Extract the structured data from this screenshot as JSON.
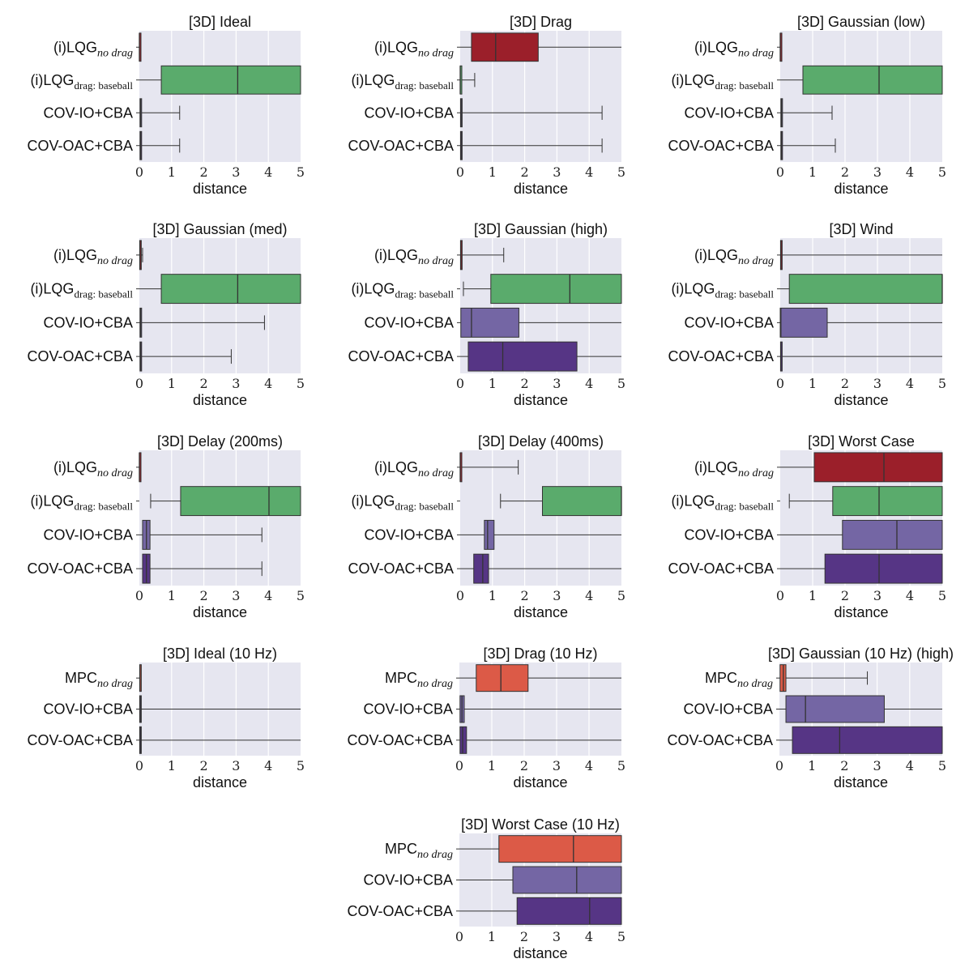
{
  "colors": {
    "lqg_nodrag": "#9b1f2a",
    "lqg_baseball": "#5aab6c",
    "cov_io": "#7466a4",
    "cov_oac": "#563585",
    "mpc_nodrag": "#dc5a47"
  },
  "chart_data": [
    {
      "type": "box",
      "title": "[3D] Ideal",
      "xlabel": "distance",
      "xlim": [
        0,
        5
      ],
      "xticks": [
        0,
        1,
        2,
        3,
        4,
        5
      ],
      "rows": [
        {
          "base": "(i)LQG",
          "sub": "no drag",
          "italic": true,
          "color": "lqg_nodrag",
          "whislo": 0,
          "q1": 0,
          "med": 0,
          "q3": 0.02,
          "whishi": 0.02
        },
        {
          "base": "(i)LQG",
          "sub": "drag: baseball",
          "italic": false,
          "color": "lqg_baseball",
          "whislo": 0,
          "q1": 0.68,
          "med": 3.05,
          "q3": 5,
          "whishi": 5
        },
        {
          "base": "COV-IO+CBA",
          "color": "cov_io",
          "whislo": 0,
          "q1": 0.02,
          "med": 0.04,
          "q3": 0.06,
          "whishi": 1.25
        },
        {
          "base": "COV-OAC+CBA",
          "color": "cov_oac",
          "whislo": 0,
          "q1": 0.02,
          "med": 0.04,
          "q3": 0.06,
          "whishi": 1.25
        }
      ]
    },
    {
      "type": "box",
      "title": "[3D] Drag",
      "xlabel": "distance",
      "xlim": [
        0,
        5
      ],
      "xticks": [
        0,
        1,
        2,
        3,
        4,
        5
      ],
      "rows": [
        {
          "base": "(i)LQG",
          "sub": "no drag",
          "italic": true,
          "color": "lqg_nodrag",
          "whislo": 0,
          "q1": 0.35,
          "med": 1.1,
          "q3": 2.42,
          "whishi": 5
        },
        {
          "base": "(i)LQG",
          "sub": "drag: baseball",
          "italic": false,
          "color": "lqg_baseball",
          "whislo": 0,
          "q1": 0,
          "med": 0,
          "q3": 0.01,
          "whishi": 0.45
        },
        {
          "base": "COV-IO+CBA",
          "color": "cov_io",
          "whislo": 0,
          "q1": 0.01,
          "med": 0.03,
          "q3": 0.06,
          "whishi": 4.4
        },
        {
          "base": "COV-OAC+CBA",
          "color": "cov_oac",
          "whislo": 0,
          "q1": 0.01,
          "med": 0.03,
          "q3": 0.06,
          "whishi": 4.4
        }
      ]
    },
    {
      "type": "box",
      "title": "[3D] Gaussian (low)",
      "xlabel": "distance",
      "xlim": [
        0,
        5
      ],
      "xticks": [
        0,
        1,
        2,
        3,
        4,
        5
      ],
      "rows": [
        {
          "base": "(i)LQG",
          "sub": "no drag",
          "italic": true,
          "color": "lqg_nodrag",
          "whislo": 0,
          "q1": 0,
          "med": 0,
          "q3": 0.02,
          "whishi": 0.02
        },
        {
          "base": "(i)LQG",
          "sub": "drag: baseball",
          "italic": false,
          "color": "lqg_baseball",
          "whislo": 0,
          "q1": 0.7,
          "med": 3.05,
          "q3": 5,
          "whishi": 5
        },
        {
          "base": "COV-IO+CBA",
          "color": "cov_io",
          "whislo": 0,
          "q1": 0.02,
          "med": 0.04,
          "q3": 0.06,
          "whishi": 1.6
        },
        {
          "base": "COV-OAC+CBA",
          "color": "cov_oac",
          "whislo": 0,
          "q1": 0.02,
          "med": 0.04,
          "q3": 0.06,
          "whishi": 1.7
        }
      ]
    },
    {
      "type": "box",
      "title": "[3D] Gaussian (med)",
      "xlabel": "distance",
      "xlim": [
        0,
        5
      ],
      "xticks": [
        0,
        1,
        2,
        3,
        4,
        5
      ],
      "rows": [
        {
          "base": "(i)LQG",
          "sub": "no drag",
          "italic": true,
          "color": "lqg_nodrag",
          "whislo": 0,
          "q1": 0.01,
          "med": 0.02,
          "q3": 0.03,
          "whishi": 0.1
        },
        {
          "base": "(i)LQG",
          "sub": "drag: baseball",
          "italic": false,
          "color": "lqg_baseball",
          "whislo": 0,
          "q1": 0.68,
          "med": 3.05,
          "q3": 5,
          "whishi": 5
        },
        {
          "base": "COV-IO+CBA",
          "color": "cov_io",
          "whislo": 0,
          "q1": 0.02,
          "med": 0.04,
          "q3": 0.06,
          "whishi": 3.88
        },
        {
          "base": "COV-OAC+CBA",
          "color": "cov_oac",
          "whislo": 0,
          "q1": 0.02,
          "med": 0.04,
          "q3": 0.06,
          "whishi": 2.85
        }
      ]
    },
    {
      "type": "box",
      "title": "[3D] Gaussian (high)",
      "xlabel": "distance",
      "xlim": [
        0,
        5
      ],
      "xticks": [
        0,
        1,
        2,
        3,
        4,
        5
      ],
      "rows": [
        {
          "base": "(i)LQG",
          "sub": "no drag",
          "italic": true,
          "color": "lqg_nodrag",
          "whislo": 0,
          "q1": 0.01,
          "med": 0.02,
          "q3": 0.04,
          "whishi": 1.35
        },
        {
          "base": "(i)LQG",
          "sub": "drag: baseball",
          "italic": false,
          "color": "lqg_baseball",
          "whislo": 0.1,
          "q1": 0.95,
          "med": 3.4,
          "q3": 5,
          "whishi": 5
        },
        {
          "base": "COV-IO+CBA",
          "color": "cov_io",
          "whislo": 0,
          "q1": 0.02,
          "med": 0.35,
          "q3": 1.82,
          "whishi": 5
        },
        {
          "base": "COV-OAC+CBA",
          "color": "cov_oac",
          "whislo": 0,
          "q1": 0.25,
          "med": 1.32,
          "q3": 3.62,
          "whishi": 5
        }
      ]
    },
    {
      "type": "box",
      "title": "[3D] Wind",
      "xlabel": "distance",
      "xlim": [
        0,
        5
      ],
      "xticks": [
        0,
        1,
        2,
        3,
        4,
        5
      ],
      "rows": [
        {
          "base": "(i)LQG",
          "sub": "no drag",
          "italic": true,
          "color": "lqg_nodrag",
          "whislo": 0,
          "q1": 0.01,
          "med": 0.02,
          "q3": 0.06,
          "whishi": 5
        },
        {
          "base": "(i)LQG",
          "sub": "drag: baseball",
          "italic": false,
          "color": "lqg_baseball",
          "whislo": 0,
          "q1": 0.28,
          "med": 5,
          "q3": 5,
          "whishi": 5
        },
        {
          "base": "COV-IO+CBA",
          "color": "cov_io",
          "whislo": 0,
          "q1": 0,
          "med": 0.02,
          "q3": 1.45,
          "whishi": 5
        },
        {
          "base": "COV-OAC+CBA",
          "color": "cov_oac",
          "whislo": 0,
          "q1": 0.01,
          "med": 0.02,
          "q3": 0.04,
          "whishi": 5
        }
      ]
    },
    {
      "type": "box",
      "title": "[3D] Delay (200ms)",
      "xlabel": "distance",
      "xlim": [
        0,
        5
      ],
      "xticks": [
        0,
        1,
        2,
        3,
        4,
        5
      ],
      "rows": [
        {
          "base": "(i)LQG",
          "sub": "no drag",
          "italic": true,
          "color": "lqg_nodrag",
          "whislo": 0,
          "q1": 0,
          "med": 0,
          "q3": 0.02,
          "whishi": 0.02
        },
        {
          "base": "(i)LQG",
          "sub": "drag: baseball",
          "italic": false,
          "color": "lqg_baseball",
          "whislo": 0.35,
          "q1": 1.28,
          "med": 4.02,
          "q3": 5,
          "whishi": 5
        },
        {
          "base": "COV-IO+CBA",
          "color": "cov_io",
          "whislo": 0,
          "q1": 0.1,
          "med": 0.22,
          "q3": 0.33,
          "whishi": 3.8
        },
        {
          "base": "COV-OAC+CBA",
          "color": "cov_oac",
          "whislo": 0,
          "q1": 0.1,
          "med": 0.22,
          "q3": 0.33,
          "whishi": 3.8
        }
      ]
    },
    {
      "type": "box",
      "title": "[3D] Delay (400ms)",
      "xlabel": "distance",
      "xlim": [
        0,
        5
      ],
      "xticks": [
        0,
        1,
        2,
        3,
        4,
        5
      ],
      "rows": [
        {
          "base": "(i)LQG",
          "sub": "no drag",
          "italic": true,
          "color": "lqg_nodrag",
          "whislo": 0,
          "q1": 0,
          "med": 0,
          "q3": 0.02,
          "whishi": 1.8
        },
        {
          "base": "(i)LQG",
          "sub": "drag: baseball",
          "italic": false,
          "color": "lqg_baseball",
          "whislo": 1.25,
          "q1": 2.55,
          "med": 5,
          "q3": 5,
          "whishi": 5
        },
        {
          "base": "COV-IO+CBA",
          "color": "cov_io",
          "whislo": 0,
          "q1": 0.75,
          "med": 0.85,
          "q3": 1.05,
          "whishi": 5
        },
        {
          "base": "COV-OAC+CBA",
          "color": "cov_oac",
          "whislo": 0,
          "q1": 0.42,
          "med": 0.7,
          "q3": 0.88,
          "whishi": 5
        }
      ]
    },
    {
      "type": "box",
      "title": "[3D] Worst Case",
      "xlabel": "distance",
      "xlim": [
        0,
        5
      ],
      "xticks": [
        0,
        1,
        2,
        3,
        4,
        5
      ],
      "rows": [
        {
          "base": "(i)LQG",
          "sub": "no drag",
          "italic": true,
          "color": "lqg_nodrag",
          "whislo": 0,
          "q1": 1.05,
          "med": 3.2,
          "q3": 5,
          "whishi": 5
        },
        {
          "base": "(i)LQG",
          "sub": "drag: baseball",
          "italic": false,
          "color": "lqg_baseball",
          "whislo": 0.28,
          "q1": 1.62,
          "med": 3.05,
          "q3": 5,
          "whishi": 5
        },
        {
          "base": "COV-IO+CBA",
          "color": "cov_io",
          "whislo": 0,
          "q1": 1.92,
          "med": 3.6,
          "q3": 5,
          "whishi": 5
        },
        {
          "base": "COV-OAC+CBA",
          "color": "cov_oac",
          "whislo": 0,
          "q1": 1.38,
          "med": 3.05,
          "q3": 5,
          "whishi": 5
        }
      ]
    },
    {
      "type": "box",
      "title": "[3D] Ideal (10 Hz)",
      "xlabel": "distance",
      "xlim": [
        0,
        5
      ],
      "xticks": [
        0,
        1,
        2,
        3,
        4,
        5
      ],
      "rows": [
        {
          "base": "MPC",
          "sub": "no drag",
          "italic": true,
          "color": "mpc_nodrag",
          "whislo": 0,
          "q1": 0.01,
          "med": 0.02,
          "q3": 0.04,
          "whishi": 0.05
        },
        {
          "base": "COV-IO+CBA",
          "color": "cov_io",
          "whislo": 0,
          "q1": 0.01,
          "med": 0.03,
          "q3": 0.06,
          "whishi": 5
        },
        {
          "base": "COV-OAC+CBA",
          "color": "cov_oac",
          "whislo": 0,
          "q1": 0.01,
          "med": 0.03,
          "q3": 0.06,
          "whishi": 5
        }
      ]
    },
    {
      "type": "box",
      "title": "[3D] Drag (10 Hz)",
      "xlabel": "distance",
      "xlim": [
        0,
        5
      ],
      "xticks": [
        0,
        1,
        2,
        3,
        4,
        5
      ],
      "rows": [
        {
          "base": "MPC",
          "sub": "no drag",
          "italic": true,
          "color": "mpc_nodrag",
          "whislo": 0,
          "q1": 0.52,
          "med": 1.28,
          "q3": 2.12,
          "whishi": 5
        },
        {
          "base": "COV-IO+CBA",
          "color": "cov_io",
          "whislo": 0,
          "q1": 0.02,
          "med": 0.08,
          "q3": 0.15,
          "whishi": 5
        },
        {
          "base": "COV-OAC+CBA",
          "color": "cov_oac",
          "whislo": 0,
          "q1": 0.02,
          "med": 0.1,
          "q3": 0.22,
          "whishi": 5
        }
      ]
    },
    {
      "type": "box",
      "title": "[3D] Gaussian (10 Hz) (high)",
      "xlabel": "distance",
      "xlim": [
        0,
        5
      ],
      "xticks": [
        0,
        1,
        2,
        3,
        4,
        5
      ],
      "rows": [
        {
          "base": "MPC",
          "sub": "no drag",
          "italic": true,
          "color": "mpc_nodrag",
          "whislo": 0,
          "q1": 0.02,
          "med": 0.12,
          "q3": 0.2,
          "whishi": 2.7
        },
        {
          "base": "COV-IO+CBA",
          "color": "cov_io",
          "whislo": 0,
          "q1": 0.2,
          "med": 0.8,
          "q3": 3.22,
          "whishi": 5
        },
        {
          "base": "COV-OAC+CBA",
          "color": "cov_oac",
          "whislo": 0,
          "q1": 0.4,
          "med": 1.85,
          "q3": 5,
          "whishi": 5
        }
      ]
    },
    {
      "type": "box",
      "title": "[3D] Worst Case (10 Hz)",
      "xlabel": "distance",
      "xlim": [
        0,
        5
      ],
      "xticks": [
        0,
        1,
        2,
        3,
        4,
        5
      ],
      "rows": [
        {
          "base": "MPC",
          "sub": "no drag",
          "italic": true,
          "color": "mpc_nodrag",
          "whislo": 0,
          "q1": 1.22,
          "med": 3.52,
          "q3": 5,
          "whishi": 5
        },
        {
          "base": "COV-IO+CBA",
          "color": "cov_io",
          "whislo": 0,
          "q1": 1.65,
          "med": 3.62,
          "q3": 5,
          "whishi": 5
        },
        {
          "base": "COV-OAC+CBA",
          "color": "cov_oac",
          "whislo": 0,
          "q1": 1.78,
          "med": 4.02,
          "q3": 5,
          "whishi": 5
        }
      ]
    }
  ]
}
